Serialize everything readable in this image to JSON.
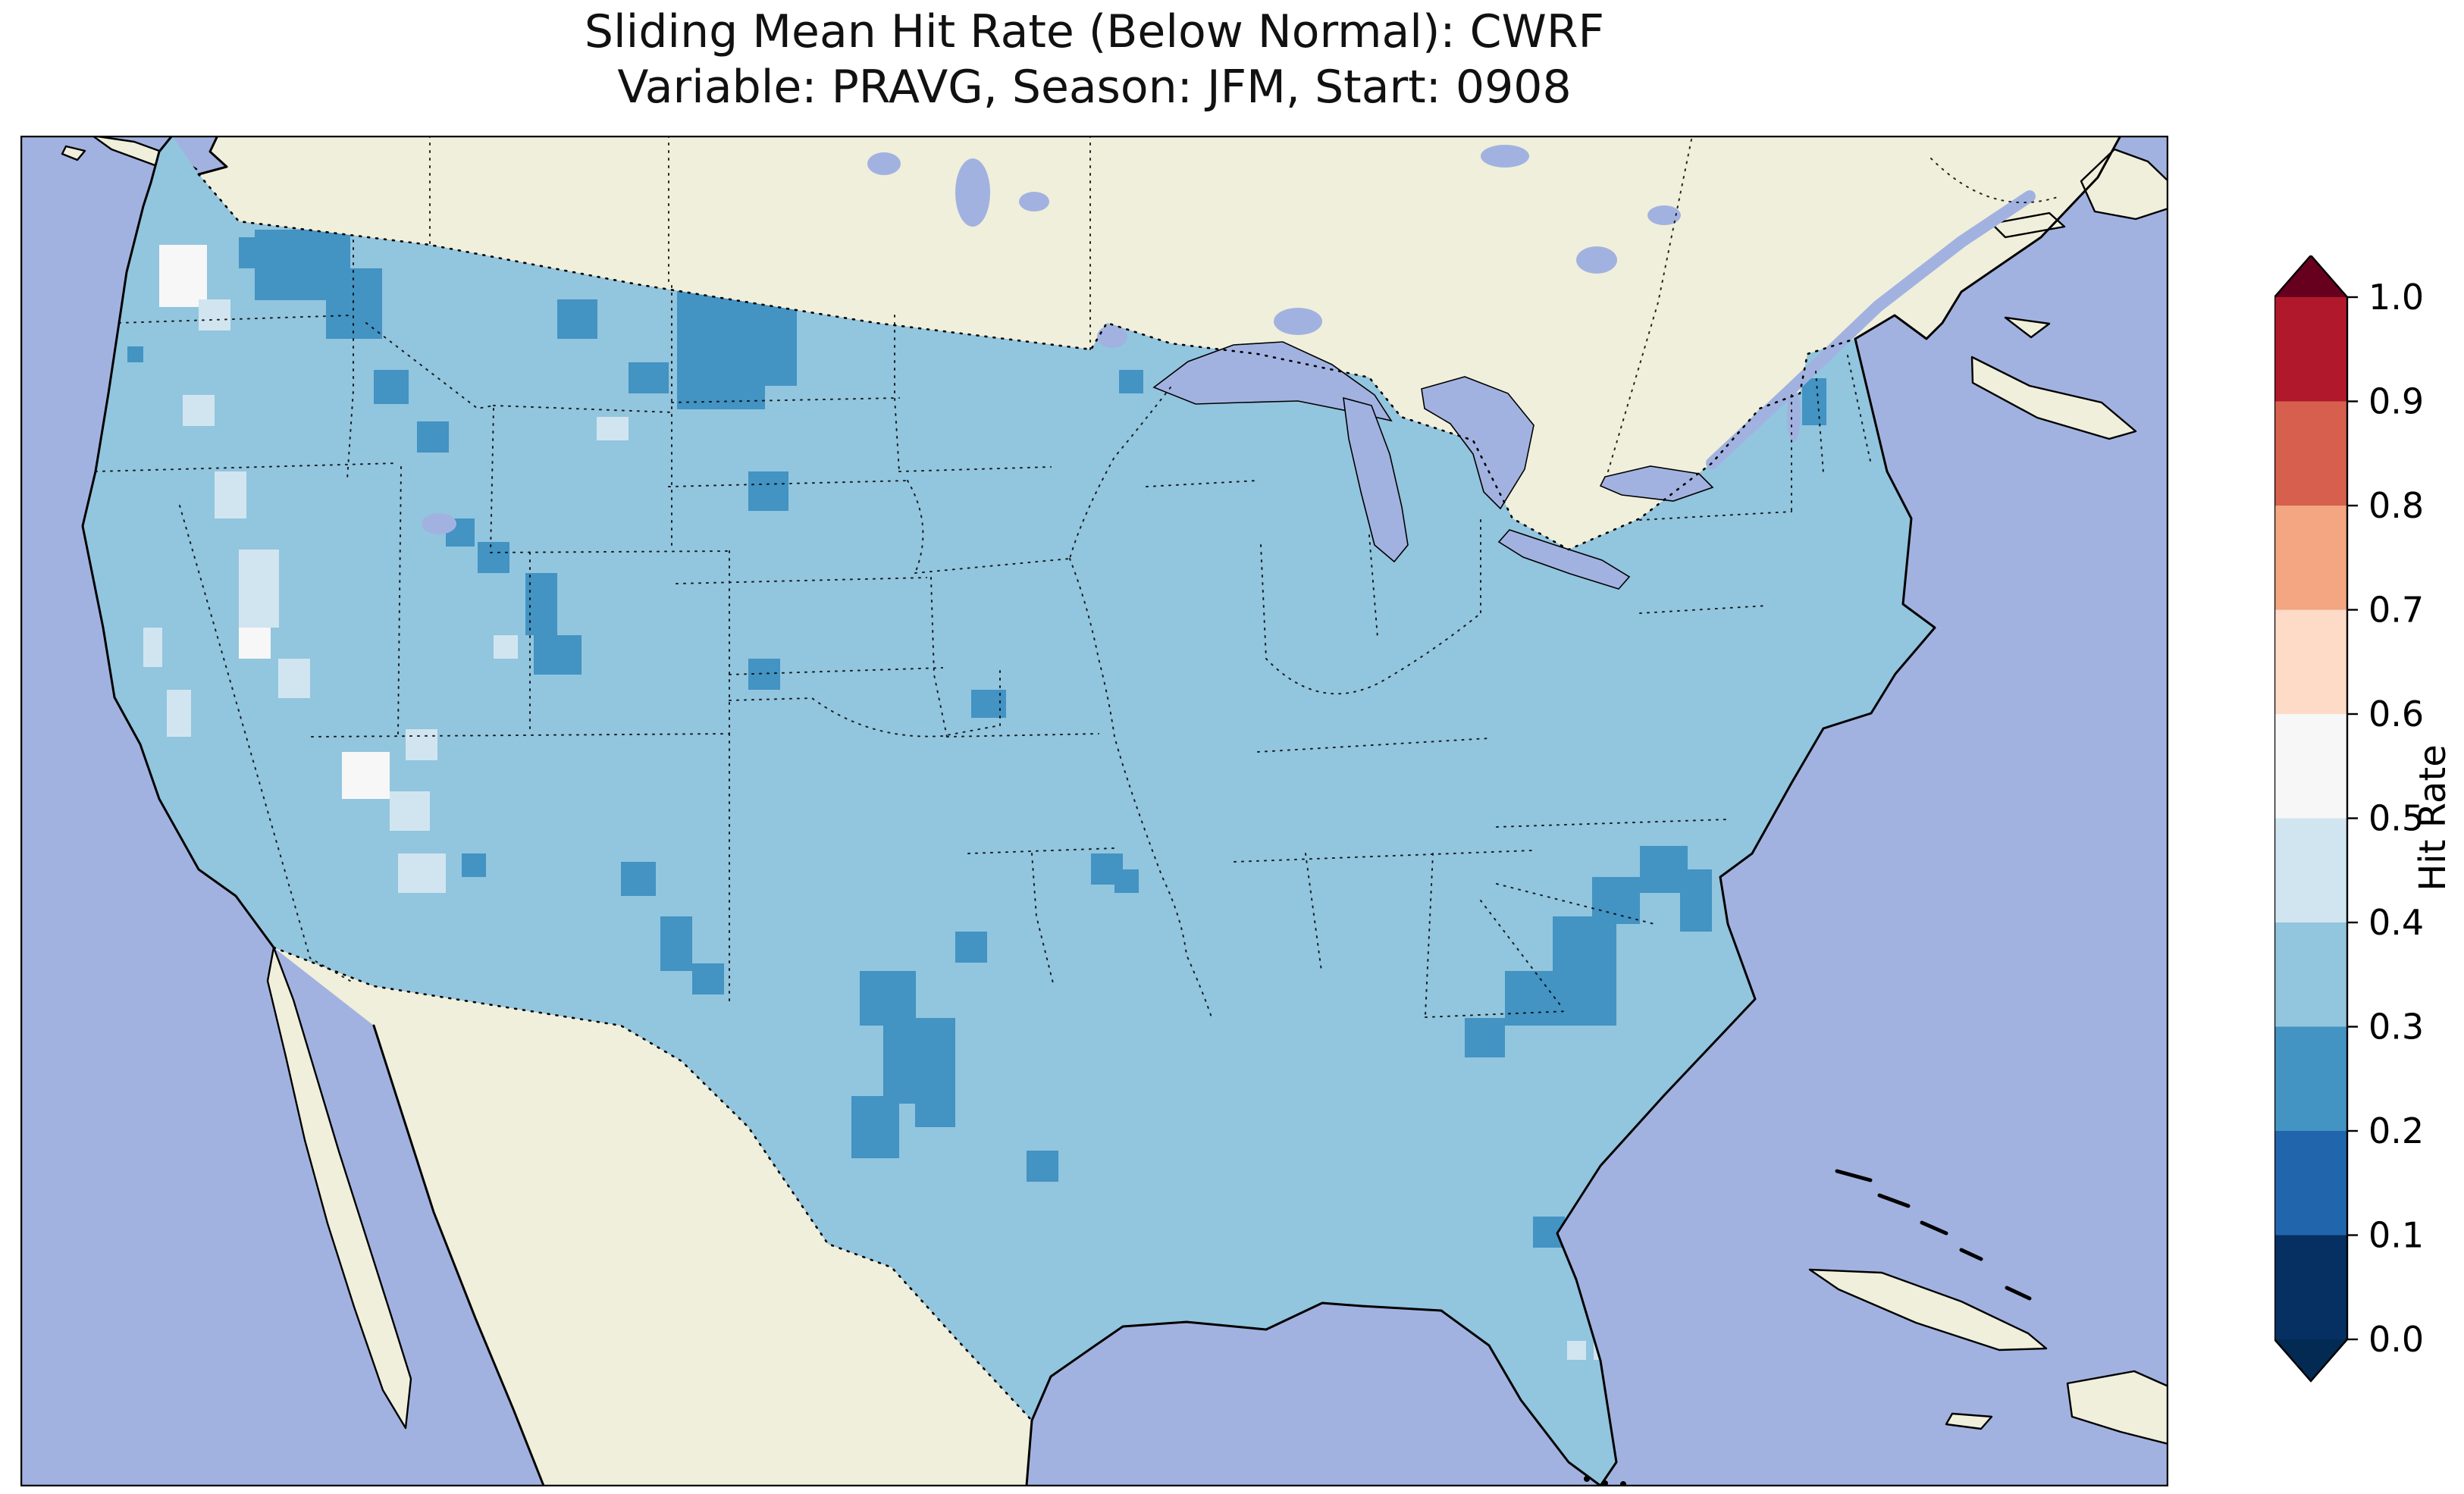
{
  "figure": {
    "title_line1": "Sliding Mean Hit Rate (Below Normal): CWRF",
    "title_line2": "Variable: PRAVG, Season: JFM, Start: 0908"
  },
  "colorbar": {
    "label": "Hit Rate",
    "ticks": [
      "1.0",
      "0.9",
      "0.8",
      "0.7",
      "0.6",
      "0.5",
      "0.4",
      "0.3",
      "0.2",
      "0.1",
      "0.0"
    ],
    "segment_colors_top_to_bottom": [
      "#b2182b",
      "#d6604d",
      "#f4a582",
      "#fddbc7",
      "#f7f7f7",
      "#d1e5f0",
      "#92c5de",
      "#4393c3",
      "#2166ac",
      "#053061"
    ],
    "over_color": "#67001f",
    "under_color": "#032a52"
  },
  "map": {
    "ocean_color": "#a2b2e0",
    "land_color": "#f0efdb",
    "base_color": "#92c5de",
    "bin_colors": {
      "d": "#4393c3",
      "l": "#d1e5f0",
      "w": "#f7f7f7"
    },
    "patches": [
      [
        309,
        124,
        126,
        93,
        "d"
      ],
      [
        403,
        175,
        74,
        93,
        "d"
      ],
      [
        288,
        134,
        42,
        41,
        "d"
      ],
      [
        866,
        165,
        116,
        196,
        "d"
      ],
      [
        929,
        206,
        95,
        124,
        "d"
      ],
      [
        708,
        216,
        53,
        52,
        "d"
      ],
      [
        802,
        299,
        53,
        41,
        "d"
      ],
      [
        466,
        309,
        46,
        45,
        "d"
      ],
      [
        523,
        377,
        42,
        41,
        "d"
      ],
      [
        960,
        443,
        53,
        52,
        "d"
      ],
      [
        666,
        577,
        42,
        82,
        "d"
      ],
      [
        677,
        659,
        63,
        52,
        "d"
      ],
      [
        603,
        536,
        42,
        41,
        "d"
      ],
      [
        561,
        505,
        38,
        37,
        "d"
      ],
      [
        792,
        958,
        46,
        45,
        "d"
      ],
      [
        844,
        1030,
        42,
        72,
        "d"
      ],
      [
        886,
        1092,
        42,
        41,
        "d"
      ],
      [
        1107,
        1102,
        74,
        72,
        "d"
      ],
      [
        1138,
        1164,
        95,
        113,
        "d"
      ],
      [
        1096,
        1267,
        63,
        82,
        "d"
      ],
      [
        1180,
        1246,
        53,
        62,
        "d"
      ],
      [
        1233,
        1050,
        42,
        41,
        "d"
      ],
      [
        1254,
        731,
        46,
        37,
        "d"
      ],
      [
        1412,
        947,
        42,
        41,
        "d"
      ],
      [
        1443,
        968,
        32,
        31,
        "d"
      ],
      [
        2021,
        1030,
        84,
        144,
        "d"
      ],
      [
        1958,
        1102,
        63,
        72,
        "d"
      ],
      [
        1905,
        1164,
        53,
        52,
        "d"
      ],
      [
        2073,
        978,
        63,
        62,
        "d"
      ],
      [
        2136,
        937,
        63,
        62,
        "d"
      ],
      [
        2189,
        968,
        42,
        82,
        "d"
      ],
      [
        2350,
        320,
        32,
        62,
        "d"
      ],
      [
        1449,
        309,
        32,
        31,
        "d"
      ],
      [
        141,
        278,
        21,
        21,
        "d"
      ],
      [
        582,
        947,
        32,
        31,
        "d"
      ],
      [
        960,
        690,
        42,
        41,
        "d"
      ],
      [
        1327,
        1339,
        42,
        41,
        "d"
      ],
      [
        1995,
        1426,
        42,
        41,
        "d"
      ],
      [
        183,
        144,
        63,
        82,
        "w"
      ],
      [
        288,
        628,
        42,
        62,
        "w"
      ],
      [
        424,
        813,
        63,
        62,
        "w"
      ],
      [
        235,
        216,
        42,
        41,
        "l"
      ],
      [
        288,
        546,
        53,
        103,
        "l"
      ],
      [
        256,
        443,
        42,
        62,
        "l"
      ],
      [
        340,
        690,
        42,
        52,
        "l"
      ],
      [
        487,
        865,
        53,
        52,
        "l"
      ],
      [
        508,
        783,
        42,
        41,
        "l"
      ],
      [
        498,
        947,
        63,
        52,
        "l"
      ],
      [
        760,
        371,
        42,
        31,
        "l"
      ],
      [
        193,
        731,
        32,
        62,
        "l"
      ],
      [
        162,
        649,
        25,
        52,
        "l"
      ],
      [
        2040,
        1590,
        25,
        25,
        "l"
      ],
      [
        2075,
        1590,
        25,
        25,
        "l"
      ],
      [
        214,
        342,
        42,
        41,
        "l"
      ],
      [
        624,
        659,
        32,
        31,
        "l"
      ]
    ]
  },
  "chart_data": {
    "type": "heatmap",
    "title": "Sliding Mean Hit Rate (Below Normal): CWRF",
    "subtitle": "Variable: PRAVG, Season: JFM, Start: 0908",
    "model": "CWRF",
    "variable": "PRAVG",
    "season": "JFM",
    "start": "0908",
    "category": "Below Normal",
    "region": "Contiguous United States with surrounding Canada, Mexico, Gulf of Mexico and Atlantic",
    "colorbar": {
      "label": "Hit Rate",
      "levels": [
        0.0,
        0.1,
        0.2,
        0.3,
        0.4,
        0.5,
        0.6,
        0.7,
        0.8,
        0.9,
        1.0
      ],
      "colormap": "discrete red-blue (dark red = 1.0 at top, dark blue = 0.0 at bottom), extended with arrow ends both sides",
      "tick_labels": [
        "0.0",
        "0.1",
        "0.2",
        "0.3",
        "0.4",
        "0.5",
        "0.6",
        "0.7",
        "0.8",
        "0.9",
        "1.0"
      ]
    },
    "values_summary": {
      "dominant_bin": "0.3-0.4 (light blue) covering most of the CONUS",
      "bin_0.2_0.3_regions": "northeast Washington / Idaho panhandle, western Montana Rockies cluster, Wyoming-Colorado front range, southern Colorado / New Mexico spots, Texas panhandle and central Texas / Oklahoma cluster, small Kansas-Missouri spots, coastal plain of Georgia / South Carolina / eastern North Carolina, small Vermont-New Hampshire cells",
      "bin_0.4_0.5_regions": "patches along the California-Nevada border, southern Utah / northern Arizona, central Arizona, scattered Montana and west-coast cells, two small cells in south Florida",
      "bin_0.5_0.6_regions": "small near-white patches in western Washington, northwest and southern Nevada",
      "bins_above_0.6": "none visible on the map"
    }
  }
}
